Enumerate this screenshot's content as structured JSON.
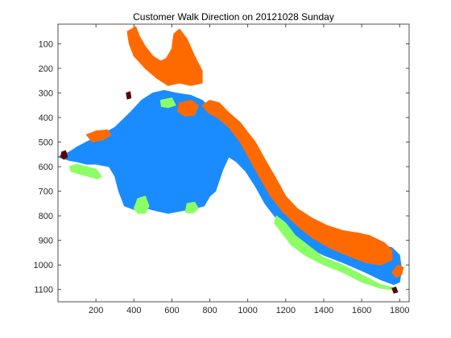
{
  "figure": {
    "background": "#ffffff"
  },
  "chart_data": {
    "type": "heatmap",
    "title": "Customer Walk Direction on 20121028 Sunday",
    "xlabel": "",
    "ylabel": "",
    "xlim": [
      0,
      1850
    ],
    "ylim": [
      1150,
      20
    ],
    "y_reversed": true,
    "grid": false,
    "legend": "none",
    "x_ticks": [
      200,
      400,
      600,
      800,
      1000,
      1200,
      1400,
      1600,
      1800
    ],
    "y_ticks": [
      100,
      200,
      300,
      400,
      500,
      600,
      700,
      800,
      900,
      1000,
      1100
    ],
    "colors": {
      "orange": "#ff6a00",
      "blue": "#1a8cff",
      "green": "#8cff66",
      "dark": "#5a0000"
    },
    "regions": [
      {
        "color": "blue",
        "polygons": [
          [
            [
              0,
              560
            ],
            [
              60,
              540
            ],
            [
              100,
              520
            ],
            [
              150,
              500
            ],
            [
              230,
              470
            ],
            [
              300,
              440
            ],
            [
              380,
              380
            ],
            [
              440,
              330
            ],
            [
              500,
              300
            ],
            [
              560,
              290
            ],
            [
              620,
              300
            ],
            [
              700,
              310
            ],
            [
              760,
              330
            ],
            [
              800,
              360
            ],
            [
              840,
              380
            ],
            [
              880,
              400
            ],
            [
              930,
              440
            ],
            [
              980,
              470
            ],
            [
              1010,
              500
            ],
            [
              1030,
              550
            ],
            [
              1080,
              620
            ],
            [
              1130,
              690
            ],
            [
              1200,
              750
            ],
            [
              1300,
              800
            ],
            [
              1400,
              850
            ],
            [
              1500,
              880
            ],
            [
              1600,
              900
            ],
            [
              1700,
              920
            ],
            [
              1760,
              930
            ],
            [
              1800,
              960
            ],
            [
              1810,
              1020
            ],
            [
              1800,
              1070
            ],
            [
              1770,
              1080
            ],
            [
              1700,
              1060
            ],
            [
              1620,
              1030
            ],
            [
              1500,
              990
            ],
            [
              1400,
              960
            ],
            [
              1300,
              920
            ],
            [
              1220,
              870
            ],
            [
              1150,
              810
            ],
            [
              1090,
              750
            ],
            [
              1040,
              680
            ],
            [
              990,
              620
            ],
            [
              940,
              580
            ],
            [
              900,
              560
            ],
            [
              870,
              610
            ],
            [
              830,
              700
            ],
            [
              800,
              720
            ],
            [
              770,
              760
            ],
            [
              720,
              770
            ],
            [
              650,
              780
            ],
            [
              580,
              790
            ],
            [
              520,
              780
            ],
            [
              470,
              770
            ],
            [
              420,
              780
            ],
            [
              350,
              760
            ],
            [
              320,
              700
            ],
            [
              300,
              640
            ],
            [
              270,
              600
            ],
            [
              200,
              590
            ],
            [
              150,
              590
            ],
            [
              100,
              580
            ],
            [
              60,
              575
            ]
          ]
        ]
      },
      {
        "color": "orange",
        "polygons": [
          [
            [
              365,
              50
            ],
            [
              410,
              30
            ],
            [
              430,
              70
            ],
            [
              460,
              110
            ],
            [
              500,
              150
            ],
            [
              540,
              170
            ],
            [
              570,
              160
            ],
            [
              600,
              120
            ],
            [
              610,
              60
            ],
            [
              640,
              40
            ],
            [
              680,
              80
            ],
            [
              720,
              150
            ],
            [
              760,
              210
            ],
            [
              760,
              260
            ],
            [
              700,
              270
            ],
            [
              640,
              260
            ],
            [
              580,
              270
            ],
            [
              520,
              240
            ],
            [
              460,
              200
            ],
            [
              400,
              150
            ],
            [
              375,
              100
            ]
          ],
          [
            [
              760,
              350
            ],
            [
              800,
              330
            ],
            [
              850,
              340
            ],
            [
              900,
              380
            ],
            [
              960,
              420
            ],
            [
              1010,
              470
            ],
            [
              1040,
              500
            ],
            [
              1090,
              570
            ],
            [
              1150,
              650
            ],
            [
              1200,
              720
            ],
            [
              1260,
              770
            ],
            [
              1340,
              810
            ],
            [
              1420,
              840
            ],
            [
              1500,
              860
            ],
            [
              1580,
              870
            ],
            [
              1640,
              880
            ],
            [
              1720,
              910
            ],
            [
              1760,
              940
            ],
            [
              1760,
              980
            ],
            [
              1700,
              1000
            ],
            [
              1620,
              990
            ],
            [
              1520,
              960
            ],
            [
              1430,
              930
            ],
            [
              1340,
              890
            ],
            [
              1260,
              840
            ],
            [
              1180,
              780
            ],
            [
              1120,
              720
            ],
            [
              1060,
              640
            ],
            [
              1010,
              570
            ],
            [
              960,
              500
            ],
            [
              900,
              440
            ],
            [
              840,
              400
            ],
            [
              790,
              380
            ]
          ],
          [
            [
              150,
              470
            ],
            [
              200,
              455
            ],
            [
              260,
              450
            ],
            [
              280,
              470
            ],
            [
              240,
              490
            ],
            [
              180,
              500
            ]
          ],
          [
            [
              640,
              340
            ],
            [
              700,
              330
            ],
            [
              740,
              350
            ],
            [
              720,
              390
            ],
            [
              670,
              395
            ],
            [
              630,
              375
            ]
          ],
          [
            [
              1790,
              1000
            ],
            [
              1820,
              1010
            ],
            [
              1810,
              1040
            ],
            [
              1780,
              1050
            ],
            [
              1760,
              1030
            ]
          ]
        ]
      },
      {
        "color": "green",
        "polygons": [
          [
            [
              60,
              600
            ],
            [
              100,
              590
            ],
            [
              150,
              600
            ],
            [
              200,
              610
            ],
            [
              230,
              640
            ],
            [
              210,
              650
            ],
            [
              160,
              640
            ],
            [
              110,
              630
            ],
            [
              70,
              620
            ]
          ],
          [
            [
              1150,
              800
            ],
            [
              1200,
              830
            ],
            [
              1250,
              880
            ],
            [
              1300,
              910
            ],
            [
              1350,
              940
            ],
            [
              1400,
              970
            ],
            [
              1450,
              985
            ],
            [
              1500,
              1000
            ],
            [
              1600,
              1040
            ],
            [
              1650,
              1060
            ],
            [
              1700,
              1080
            ],
            [
              1760,
              1090
            ],
            [
              1760,
              1100
            ],
            [
              1700,
              1095
            ],
            [
              1600,
              1070
            ],
            [
              1500,
              1030
            ],
            [
              1400,
              1000
            ],
            [
              1300,
              960
            ],
            [
              1230,
              920
            ],
            [
              1180,
              870
            ],
            [
              1140,
              830
            ]
          ],
          [
            [
              420,
              730
            ],
            [
              460,
              720
            ],
            [
              480,
              760
            ],
            [
              460,
              790
            ],
            [
              420,
              790
            ],
            [
              400,
              770
            ]
          ],
          [
            [
              680,
              750
            ],
            [
              720,
              745
            ],
            [
              740,
              770
            ],
            [
              710,
              790
            ],
            [
              670,
              785
            ]
          ],
          [
            [
              540,
              330
            ],
            [
              600,
              320
            ],
            [
              620,
              350
            ],
            [
              580,
              360
            ],
            [
              545,
              355
            ]
          ]
        ]
      },
      {
        "color": "dark",
        "polygons": [
          [
            [
              20,
              540
            ],
            [
              40,
              535
            ],
            [
              50,
              560
            ],
            [
              30,
              570
            ],
            [
              15,
              560
            ]
          ],
          [
            [
              360,
              300
            ],
            [
              380,
              295
            ],
            [
              385,
              320
            ],
            [
              365,
              325
            ]
          ],
          [
            [
              1760,
              1095
            ],
            [
              1780,
              1090
            ],
            [
              1790,
              1110
            ],
            [
              1770,
              1115
            ]
          ]
        ]
      }
    ]
  }
}
